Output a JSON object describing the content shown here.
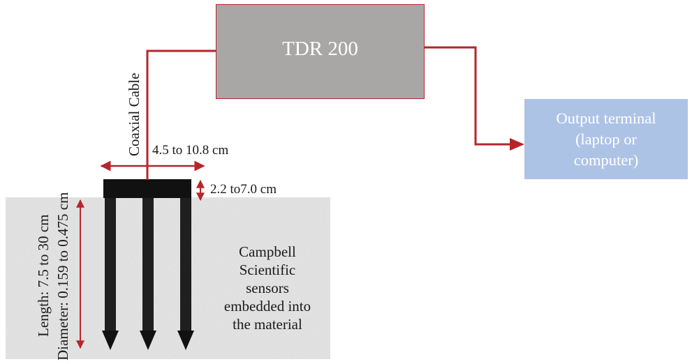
{
  "tdr": {
    "label": "TDR 200"
  },
  "output_terminal": {
    "lines": [
      "Output terminal",
      "(laptop or",
      "computer)"
    ]
  },
  "cable": {
    "label": "Coaxial Cable"
  },
  "dimensions": {
    "width": "4.5 to 10.8 cm",
    "height": "2.2 to7.0 cm",
    "length": "Length: 7.5 to 30 cm",
    "diameter": "Diameter: 0.159 to 0.475 cm"
  },
  "sensor_description": {
    "lines": [
      "Campbell",
      "Scientific",
      "sensors",
      "embedded into",
      "the material"
    ]
  },
  "colors": {
    "connector": "#b5262b",
    "tdr_fill": "#a9a7a6",
    "output_fill": "#adc3e6",
    "material_fill": "#e2e2e2",
    "probe": "#111111"
  }
}
